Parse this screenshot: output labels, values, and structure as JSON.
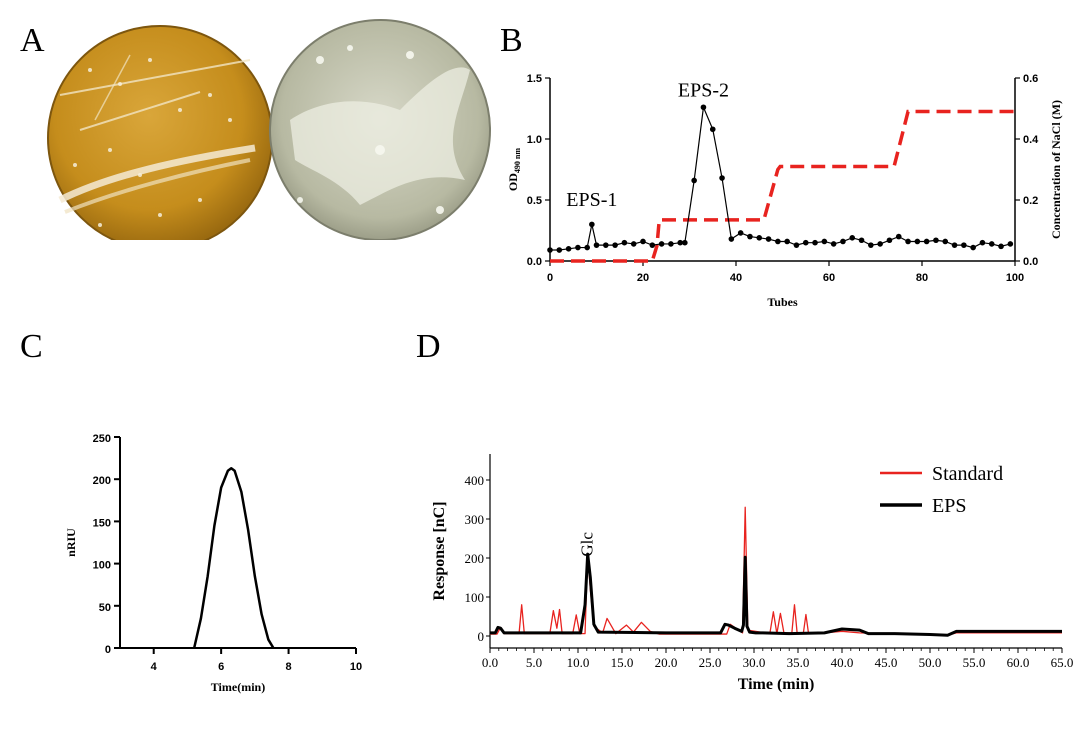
{
  "panels": {
    "a": "A",
    "b": "B",
    "c": "C",
    "d": "D"
  },
  "colors": {
    "red": "#e8231f",
    "black": "#000000",
    "plate_left": "#c58d1c",
    "plate_right": "#b7b9a2"
  },
  "chart_data": [
    {
      "panel": "B",
      "type": "line",
      "xlabel": "Tubes",
      "ylabel": "OD490 nm",
      "ylabel_main": "OD",
      "ylabel_sub": "490 nm",
      "y2label": "Concentration of NaCl (M)",
      "xlim": [
        0,
        100
      ],
      "ylim": [
        0,
        1.5
      ],
      "y2lim": [
        0,
        0.6
      ],
      "xticks": [
        "0",
        "20",
        "40",
        "60",
        "80",
        "100"
      ],
      "yticks": [
        "0.0",
        "0.5",
        "1.0",
        "1.5"
      ],
      "y2ticks": [
        "0.0",
        "0.2",
        "0.4",
        "0.6"
      ],
      "annotations": [
        {
          "text": "EPS-1",
          "x": 9,
          "y": 0.45
        },
        {
          "text": "EPS-2",
          "x": 33,
          "y": 1.35
        }
      ],
      "series": [
        {
          "name": "",
          "axis": "left",
          "color": "#000000",
          "x": [
            0,
            2,
            4,
            6,
            8,
            9,
            10,
            12,
            14,
            16,
            18,
            20,
            22,
            24,
            26,
            28,
            29,
            31,
            33,
            35,
            37,
            39,
            41,
            43,
            45,
            47,
            49,
            51,
            53,
            55,
            57,
            59,
            61,
            63,
            65,
            67,
            69,
            71,
            73,
            75,
            77,
            79,
            81,
            83,
            85,
            87,
            89,
            91,
            93,
            95,
            97,
            99
          ],
          "values": [
            0.09,
            0.09,
            0.1,
            0.11,
            0.11,
            0.3,
            0.13,
            0.13,
            0.13,
            0.15,
            0.14,
            0.16,
            0.13,
            0.14,
            0.14,
            0.15,
            0.15,
            0.66,
            1.26,
            1.08,
            0.68,
            0.18,
            0.23,
            0.2,
            0.19,
            0.18,
            0.16,
            0.16,
            0.13,
            0.15,
            0.15,
            0.16,
            0.14,
            0.16,
            0.19,
            0.17,
            0.13,
            0.14,
            0.17,
            0.2,
            0.16,
            0.16,
            0.16,
            0.17,
            0.16,
            0.13,
            0.13,
            0.11,
            0.15,
            0.14,
            0.12,
            0.14
          ]
        },
        {
          "name": "",
          "axis": "right",
          "color": "#e8231f",
          "dashed": true,
          "x": [
            0,
            22,
            23,
            23.5,
            25,
            46,
            49,
            49.5,
            72,
            74,
            77,
            78,
            100
          ],
          "values": [
            0.0,
            0.0,
            0.05,
            0.135,
            0.135,
            0.135,
            0.3,
            0.31,
            0.31,
            0.31,
            0.49,
            0.49,
            0.49
          ]
        }
      ]
    },
    {
      "panel": "C",
      "type": "line",
      "xlabel": "Time(min)",
      "ylabel": "nRIU",
      "xlim": [
        3,
        10
      ],
      "ylim": [
        0,
        250
      ],
      "xticks": [
        "4",
        "6",
        "8",
        "10"
      ],
      "yticks": [
        "0",
        "50",
        "100",
        "150",
        "200",
        "250"
      ],
      "series": [
        {
          "name": "",
          "color": "#000000",
          "x": [
            5.2,
            5.4,
            5.6,
            5.8,
            6.0,
            6.2,
            6.3,
            6.4,
            6.6,
            6.8,
            7.0,
            7.2,
            7.4,
            7.55
          ],
          "values": [
            0,
            35,
            85,
            145,
            190,
            210,
            213,
            210,
            185,
            140,
            85,
            40,
            10,
            0
          ]
        }
      ]
    },
    {
      "panel": "D",
      "type": "line",
      "xlabel": "Time (min)",
      "ylabel": "Response [nC]",
      "xlim": [
        0,
        65
      ],
      "ylim": [
        0,
        400
      ],
      "xticks": [
        "0.0",
        "5.0",
        "10.0",
        "15.0",
        "20.0",
        "25.0",
        "30.0",
        "35.0",
        "40.0",
        "45.0",
        "50.0",
        "55.0",
        "60.0",
        "65.0"
      ],
      "yticks": [
        "0",
        "100",
        "200",
        "300",
        "400"
      ],
      "legend_position": "top-right",
      "annotations": [
        {
          "text": "Glc",
          "x": 11.1,
          "y": 235
        }
      ],
      "series": [
        {
          "name": "Standard",
          "color": "#e8231f",
          "x": [
            0,
            0.8,
            1.2,
            1.6,
            3.3,
            3.6,
            3.9,
            6.8,
            7.2,
            7.6,
            7.9,
            8.2,
            9.4,
            9.8,
            10.2,
            10.8,
            11.1,
            11.4,
            11.8,
            12.8,
            13.3,
            14.3,
            15.5,
            16.3,
            17.2,
            18.2,
            19.2,
            26.9,
            27.3,
            28.7,
            29.0,
            29.3,
            31.8,
            32.2,
            32.6,
            33.0,
            33.4,
            34.3,
            34.6,
            34.9,
            35.6,
            35.9,
            36.2,
            37,
            40,
            42,
            45,
            50,
            52,
            53,
            55,
            65
          ],
          "values": [
            5,
            5,
            22,
            6,
            6,
            80,
            6,
            6,
            65,
            20,
            68,
            6,
            6,
            54,
            6,
            6,
            210,
            120,
            25,
            8,
            45,
            6,
            28,
            10,
            35,
            12,
            5,
            5,
            30,
            8,
            330,
            15,
            6,
            62,
            6,
            58,
            8,
            8,
            80,
            8,
            6,
            55,
            6,
            6,
            12,
            8,
            6,
            4,
            2,
            8,
            8,
            8
          ]
        },
        {
          "name": "EPS",
          "color": "#000000",
          "x": [
            0,
            0.6,
            0.9,
            1.2,
            1.6,
            2.5,
            10.3,
            10.8,
            11.1,
            11.4,
            11.8,
            12.3,
            20,
            26.2,
            26.7,
            27.1,
            27.8,
            28.6,
            28.8,
            29.0,
            29.2,
            29.5,
            30.2,
            31,
            34,
            38,
            40,
            42,
            43,
            46,
            50,
            52,
            53,
            55,
            65
          ],
          "values": [
            8,
            8,
            22,
            20,
            8,
            8,
            8,
            80,
            210,
            150,
            30,
            10,
            8,
            8,
            30,
            28,
            20,
            12,
            28,
            202,
            25,
            10,
            8,
            8,
            6,
            8,
            18,
            15,
            6,
            6,
            4,
            2,
            12,
            12,
            12
          ]
        }
      ]
    }
  ]
}
